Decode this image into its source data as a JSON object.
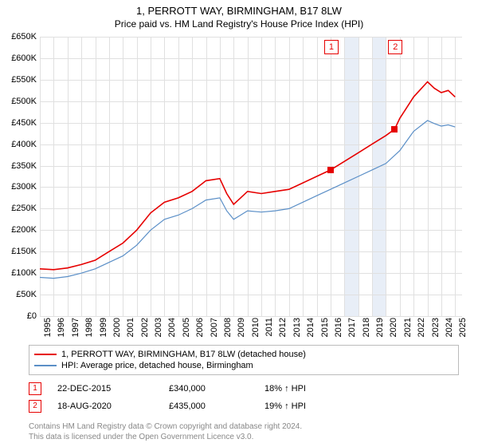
{
  "title": "1, PERROTT WAY, BIRMINGHAM, B17 8LW",
  "subtitle": "Price paid vs. HM Land Registry's House Price Index (HPI)",
  "chart": {
    "type": "line",
    "background_color": "#ffffff",
    "grid_color": "#e0e0e0",
    "ylim": [
      0,
      650000
    ],
    "ytick_step": 50000,
    "yticks": [
      "£0",
      "£50K",
      "£100K",
      "£150K",
      "£200K",
      "£250K",
      "£300K",
      "£350K",
      "£400K",
      "£450K",
      "£500K",
      "£550K",
      "£600K",
      "£650K"
    ],
    "xlim": [
      1995,
      2025.5
    ],
    "xticks": [
      1995,
      1996,
      1997,
      1998,
      1999,
      2000,
      2001,
      2002,
      2003,
      2004,
      2005,
      2006,
      2007,
      2008,
      2009,
      2010,
      2011,
      2012,
      2013,
      2014,
      2015,
      2016,
      2017,
      2018,
      2019,
      2020,
      2021,
      2022,
      2023,
      2024,
      2025
    ],
    "shade_bands": [
      {
        "from": 2017,
        "to": 2018,
        "color": "#e8eef7"
      },
      {
        "from": 2019,
        "to": 2020,
        "color": "#e8eef7"
      }
    ],
    "callouts": [
      {
        "label": "1",
        "year": 2016
      },
      {
        "label": "2",
        "year": 2020.63
      }
    ],
    "series": [
      {
        "name": "property",
        "label": "1, PERROTT WAY, BIRMINGHAM, B17 8LW (detached house)",
        "color": "#e60000",
        "width": 1.6,
        "data": [
          [
            1995,
            110000
          ],
          [
            1996,
            108000
          ],
          [
            1997,
            112000
          ],
          [
            1998,
            120000
          ],
          [
            1999,
            130000
          ],
          [
            2000,
            150000
          ],
          [
            2001,
            170000
          ],
          [
            2002,
            200000
          ],
          [
            2003,
            240000
          ],
          [
            2004,
            265000
          ],
          [
            2005,
            275000
          ],
          [
            2006,
            290000
          ],
          [
            2007,
            315000
          ],
          [
            2008,
            320000
          ],
          [
            2008.5,
            285000
          ],
          [
            2009,
            260000
          ],
          [
            2009.5,
            275000
          ],
          [
            2010,
            290000
          ],
          [
            2011,
            285000
          ],
          [
            2012,
            290000
          ],
          [
            2013,
            295000
          ],
          [
            2014,
            310000
          ],
          [
            2015,
            325000
          ],
          [
            2016,
            340000
          ],
          [
            2017,
            360000
          ],
          [
            2018,
            380000
          ],
          [
            2019,
            400000
          ],
          [
            2020,
            420000
          ],
          [
            2020.63,
            435000
          ],
          [
            2021,
            460000
          ],
          [
            2022,
            510000
          ],
          [
            2023,
            545000
          ],
          [
            2023.5,
            530000
          ],
          [
            2024,
            520000
          ],
          [
            2024.5,
            525000
          ],
          [
            2025,
            510000
          ]
        ]
      },
      {
        "name": "hpi",
        "label": "HPI: Average price, detached house, Birmingham",
        "color": "#5b8fc7",
        "width": 1.2,
        "data": [
          [
            1995,
            90000
          ],
          [
            1996,
            88000
          ],
          [
            1997,
            92000
          ],
          [
            1998,
            100000
          ],
          [
            1999,
            110000
          ],
          [
            2000,
            125000
          ],
          [
            2001,
            140000
          ],
          [
            2002,
            165000
          ],
          [
            2003,
            200000
          ],
          [
            2004,
            225000
          ],
          [
            2005,
            235000
          ],
          [
            2006,
            250000
          ],
          [
            2007,
            270000
          ],
          [
            2008,
            275000
          ],
          [
            2008.5,
            245000
          ],
          [
            2009,
            225000
          ],
          [
            2009.5,
            235000
          ],
          [
            2010,
            245000
          ],
          [
            2011,
            242000
          ],
          [
            2012,
            245000
          ],
          [
            2013,
            250000
          ],
          [
            2014,
            265000
          ],
          [
            2015,
            280000
          ],
          [
            2016,
            295000
          ],
          [
            2017,
            310000
          ],
          [
            2018,
            325000
          ],
          [
            2019,
            340000
          ],
          [
            2020,
            355000
          ],
          [
            2021,
            385000
          ],
          [
            2022,
            430000
          ],
          [
            2023,
            455000
          ],
          [
            2023.5,
            448000
          ],
          [
            2024,
            442000
          ],
          [
            2024.5,
            445000
          ],
          [
            2025,
            440000
          ]
        ]
      }
    ],
    "markers": [
      {
        "year": 2016,
        "value": 340000,
        "color": "#e60000"
      },
      {
        "year": 2020.63,
        "value": 435000,
        "color": "#e60000"
      }
    ]
  },
  "sales": [
    {
      "idx": "1",
      "date": "22-DEC-2015",
      "price": "£340,000",
      "hpi": "18% ↑ HPI"
    },
    {
      "idx": "2",
      "date": "18-AUG-2020",
      "price": "£435,000",
      "hpi": "19% ↑ HPI"
    }
  ],
  "footer_line1": "Contains HM Land Registry data © Crown copyright and database right 2024.",
  "footer_line2": "This data is licensed under the Open Government Licence v3.0."
}
